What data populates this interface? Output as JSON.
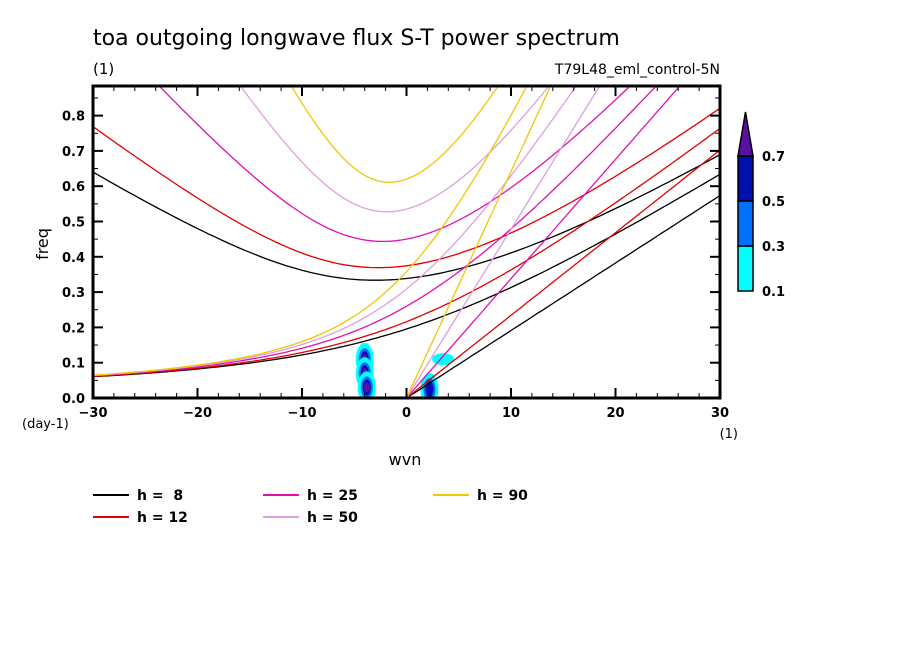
{
  "chart_data": {
    "type": "line",
    "title": "toa outgoing longwave flux S-T power spectrum",
    "subtitle_left": "(1)",
    "subtitle_right": "T79L48_eml_control-5N",
    "xlabel": "wvn",
    "ylabel": "freq",
    "x_unit": "(1)",
    "y_unit": "(day-1)",
    "xlim": [
      -30,
      30
    ],
    "ylim": [
      0.0,
      0.88
    ],
    "x_ticks": [
      -30,
      -20,
      -10,
      0,
      10,
      20,
      30
    ],
    "x_tick_labels": [
      "-30",
      "-20",
      "-10",
      "0",
      "10",
      "20",
      "30"
    ],
    "y_ticks": [
      0.0,
      0.1,
      0.2,
      0.3,
      0.4,
      0.5,
      0.6,
      0.7,
      0.8
    ],
    "y_tick_labels": [
      "0.0",
      "0.1",
      "0.2",
      "0.3",
      "0.4",
      "0.5",
      "0.6",
      "0.7",
      "0.8"
    ],
    "series": [
      {
        "name": "h =  8",
        "h": 8,
        "color": "#000000"
      },
      {
        "name": "h = 12",
        "h": 12,
        "color": "#e00000"
      },
      {
        "name": "h = 25",
        "h": 25,
        "color": "#e010b0"
      },
      {
        "name": "h = 50",
        "h": 50,
        "color": "#dda0dd"
      },
      {
        "name": "h = 90",
        "h": 90,
        "color": "#f0c800"
      }
    ],
    "colorbar": {
      "levels": [
        "0.1",
        "0.3",
        "0.5",
        "0.7"
      ],
      "colors": [
        "#00ffff",
        "#0070ff",
        "#0010b0",
        "#5a10a0"
      ]
    },
    "contour_blobs": [
      {
        "wvn": -4,
        "freq": 0.11,
        "level": 3
      },
      {
        "wvn": -4,
        "freq": 0.07,
        "level": 3
      },
      {
        "wvn": -3.8,
        "freq": 0.03,
        "level": 3
      },
      {
        "wvn": 2.2,
        "freq": 0.025,
        "level": 2
      },
      {
        "wvn": 3.5,
        "freq": 0.11,
        "level": 0
      }
    ]
  }
}
